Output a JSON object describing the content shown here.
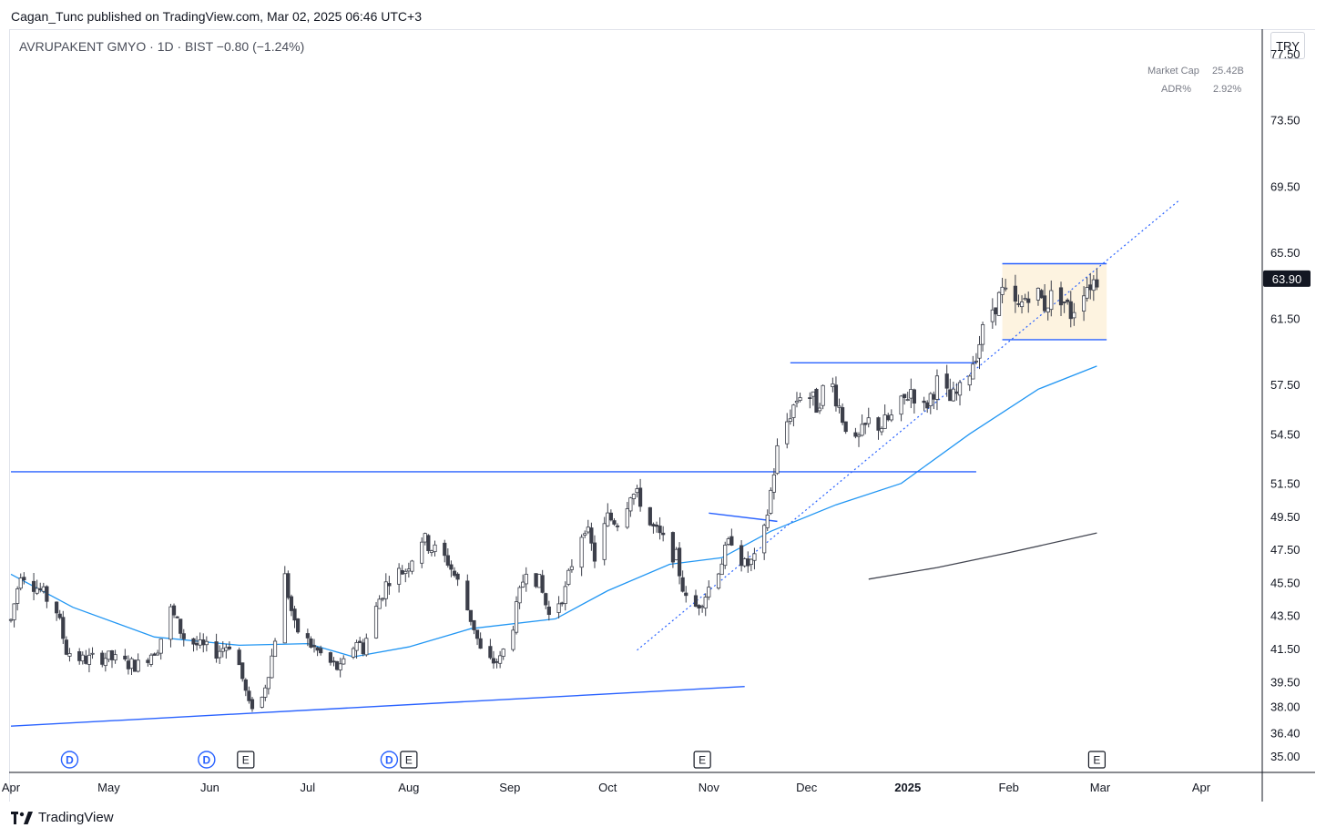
{
  "header": {
    "published": "Cagan_Tunc published on TradingView.com, Mar 02, 2025 06:46 UTC+3",
    "symbol_line": "AVRUPAKENT GMYO · 1D · BIST  −0.80 (−1.24%)"
  },
  "stats": {
    "market_cap_label": "Market Cap",
    "market_cap_value": "25.42B",
    "adr_label": "ADR%",
    "adr_value": "2.92%"
  },
  "currency": "TRY",
  "footer": {
    "brand": "TradingView"
  },
  "colors": {
    "up_body": "#ffffff",
    "down_body": "#3c3f4a",
    "wick": "#3c3f4a",
    "drawing_line": "#2962ff",
    "ma50": "#2196f3",
    "ma200": "#434651",
    "range_box": "#fdf3e0",
    "last_price_bg": "#131722"
  },
  "chart_data": {
    "type": "candlestick",
    "symbol": "AVRUPAKENT GMYO",
    "interval": "1D",
    "exchange": "BIST",
    "currency": "TRY",
    "last_price": "63.90",
    "change": "−0.80 (−1.24%)",
    "y_axis": {
      "ticks": [
        "77.50",
        "73.50",
        "69.50",
        "65.50",
        "61.50",
        "57.50",
        "54.50",
        "51.50",
        "49.50",
        "47.50",
        "45.50",
        "43.50",
        "41.50",
        "39.50",
        "38.00",
        "36.40",
        "35.00"
      ],
      "ylim": [
        34.0,
        79.0
      ]
    },
    "x_axis": {
      "ticks": [
        {
          "label": "Apr",
          "date": "2024-04-01"
        },
        {
          "label": "May",
          "date": "2024-05-01"
        },
        {
          "label": "Jun",
          "date": "2024-06-01"
        },
        {
          "label": "Jul",
          "date": "2024-07-01"
        },
        {
          "label": "Aug",
          "date": "2024-08-01"
        },
        {
          "label": "Sep",
          "date": "2024-09-01"
        },
        {
          "label": "Oct",
          "date": "2024-10-01"
        },
        {
          "label": "Nov",
          "date": "2024-11-01"
        },
        {
          "label": "Dec",
          "date": "2024-12-01"
        },
        {
          "label": "2025",
          "date": "2025-01-01",
          "bold": true
        },
        {
          "label": "Feb",
          "date": "2025-02-01"
        },
        {
          "label": "Mar",
          "date": "2025-03-01"
        },
        {
          "label": "Apr",
          "date": "2025-04-01"
        }
      ]
    },
    "price_path": [
      [
        "2024-04-01",
        43.2
      ],
      [
        "2024-04-04",
        46.2
      ],
      [
        "2024-04-10",
        45.0
      ],
      [
        "2024-04-15",
        43.8
      ],
      [
        "2024-04-18",
        41.4
      ],
      [
        "2024-04-23",
        40.8
      ],
      [
        "2024-04-30",
        41.0
      ],
      [
        "2024-05-06",
        40.6
      ],
      [
        "2024-05-10",
        40.5
      ],
      [
        "2024-05-16",
        41.6
      ],
      [
        "2024-05-20",
        43.8
      ],
      [
        "2024-05-24",
        42.2
      ],
      [
        "2024-05-29",
        41.6
      ],
      [
        "2024-06-03",
        41.3
      ],
      [
        "2024-06-07",
        41.8
      ],
      [
        "2024-06-10",
        40.5
      ],
      [
        "2024-06-13",
        38.0
      ],
      [
        "2024-06-17",
        38.5
      ],
      [
        "2024-06-20",
        41.0
      ],
      [
        "2024-06-24",
        45.8
      ],
      [
        "2024-06-27",
        42.8
      ],
      [
        "2024-07-03",
        41.5
      ],
      [
        "2024-07-08",
        40.6
      ],
      [
        "2024-07-11",
        40.2
      ],
      [
        "2024-07-16",
        42.0
      ],
      [
        "2024-07-18",
        41.5
      ],
      [
        "2024-07-23",
        44.5
      ],
      [
        "2024-07-26",
        45.8
      ],
      [
        "2024-07-31",
        46.3
      ],
      [
        "2024-08-05",
        48.2
      ],
      [
        "2024-08-08",
        47.6
      ],
      [
        "2024-08-13",
        46.8
      ],
      [
        "2024-08-16",
        45.5
      ],
      [
        "2024-08-21",
        42.8
      ],
      [
        "2024-08-24",
        40.6
      ],
      [
        "2024-08-29",
        40.8
      ],
      [
        "2024-09-02",
        43.0
      ],
      [
        "2024-09-06",
        46.5
      ],
      [
        "2024-09-10",
        45.5
      ],
      [
        "2024-09-13",
        43.5
      ],
      [
        "2024-09-18",
        45.0
      ],
      [
        "2024-09-21",
        47.5
      ],
      [
        "2024-09-24",
        49.0
      ],
      [
        "2024-09-27",
        47.0
      ],
      [
        "2024-10-01",
        49.4
      ],
      [
        "2024-10-05",
        49.2
      ],
      [
        "2024-10-08",
        51.0
      ],
      [
        "2024-10-11",
        50.5
      ],
      [
        "2024-10-14",
        49.0
      ],
      [
        "2024-10-18",
        48.0
      ],
      [
        "2024-10-22",
        47.0
      ],
      [
        "2024-10-26",
        43.5
      ],
      [
        "2024-10-31",
        44.8
      ],
      [
        "2024-11-04",
        46.4
      ],
      [
        "2024-11-08",
        48.2
      ],
      [
        "2024-11-12",
        46.5
      ],
      [
        "2024-11-15",
        46.8
      ],
      [
        "2024-11-18",
        48.5
      ],
      [
        "2024-11-22",
        53.5
      ],
      [
        "2024-11-26",
        55.8
      ],
      [
        "2024-11-30",
        57.4
      ],
      [
        "2024-12-04",
        56.2
      ],
      [
        "2024-12-08",
        58.0
      ],
      [
        "2024-12-12",
        55.5
      ],
      [
        "2024-12-16",
        53.8
      ],
      [
        "2024-12-20",
        55.2
      ],
      [
        "2024-12-24",
        55.0
      ],
      [
        "2024-12-28",
        55.6
      ],
      [
        "2025-01-02",
        57.2
      ],
      [
        "2025-01-06",
        56.0
      ],
      [
        "2025-01-10",
        57.6
      ],
      [
        "2025-01-14",
        56.5
      ],
      [
        "2025-01-18",
        57.2
      ],
      [
        "2025-01-22",
        59.5
      ],
      [
        "2025-01-26",
        61.8
      ],
      [
        "2025-01-30",
        63.0
      ],
      [
        "2025-02-04",
        62.0
      ],
      [
        "2025-02-08",
        63.5
      ],
      [
        "2025-02-12",
        62.3
      ],
      [
        "2025-02-16",
        63.2
      ],
      [
        "2025-02-20",
        61.8
      ],
      [
        "2025-02-24",
        63.4
      ],
      [
        "2025-02-28",
        63.9
      ]
    ],
    "sma_blue": [
      [
        "2024-04-01",
        46.0
      ],
      [
        "2024-04-20",
        44.0
      ],
      [
        "2024-05-15",
        42.2
      ],
      [
        "2024-06-10",
        41.7
      ],
      [
        "2024-07-01",
        41.8
      ],
      [
        "2024-07-15",
        41.0
      ],
      [
        "2024-08-01",
        41.6
      ],
      [
        "2024-08-20",
        42.7
      ],
      [
        "2024-09-15",
        43.3
      ],
      [
        "2024-10-01",
        45.0
      ],
      [
        "2024-10-20",
        46.6
      ],
      [
        "2024-11-05",
        47.0
      ],
      [
        "2024-11-20",
        48.6
      ],
      [
        "2024-12-10",
        50.2
      ],
      [
        "2024-12-30",
        51.5
      ],
      [
        "2025-01-20",
        54.5
      ],
      [
        "2025-02-10",
        57.2
      ],
      [
        "2025-02-28",
        58.6
      ]
    ],
    "sma_gray": [
      [
        "2024-12-20",
        45.7
      ],
      [
        "2025-01-10",
        46.4
      ],
      [
        "2025-02-01",
        47.3
      ],
      [
        "2025-02-28",
        48.5
      ]
    ],
    "drawings": [
      {
        "kind": "hline",
        "from": "2024-04-01",
        "to": "2025-01-22",
        "price": 52.2
      },
      {
        "kind": "trend",
        "from": [
          "2024-04-01",
          36.8
        ],
        "to": [
          "2024-11-12",
          39.2
        ]
      },
      {
        "kind": "hline",
        "from": "2024-11-26",
        "to": "2025-01-22",
        "price": 58.8
      },
      {
        "kind": "trend",
        "from": [
          "2024-11-01",
          49.7
        ],
        "to": [
          "2024-11-22",
          49.2
        ]
      },
      {
        "kind": "hline",
        "from": "2025-01-30",
        "to": "2025-03-03",
        "price": 64.8
      },
      {
        "kind": "hline",
        "from": "2025-01-30",
        "to": "2025-03-03",
        "price": 60.2
      },
      {
        "kind": "dotted_trend",
        "from": [
          "2024-10-10",
          41.4
        ],
        "to": [
          "2025-03-25",
          68.6
        ]
      }
    ],
    "range_box": {
      "from": "2025-01-30",
      "to": "2025-03-03",
      "top": 64.8,
      "bottom": 60.2
    },
    "events": [
      {
        "type": "D",
        "date": "2024-04-19"
      },
      {
        "type": "D",
        "date": "2024-05-31"
      },
      {
        "type": "E",
        "date": "2024-06-12"
      },
      {
        "type": "D",
        "date": "2024-07-26"
      },
      {
        "type": "E",
        "date": "2024-08-01"
      },
      {
        "type": "E",
        "date": "2024-10-30"
      },
      {
        "type": "E",
        "date": "2025-02-28"
      }
    ]
  }
}
